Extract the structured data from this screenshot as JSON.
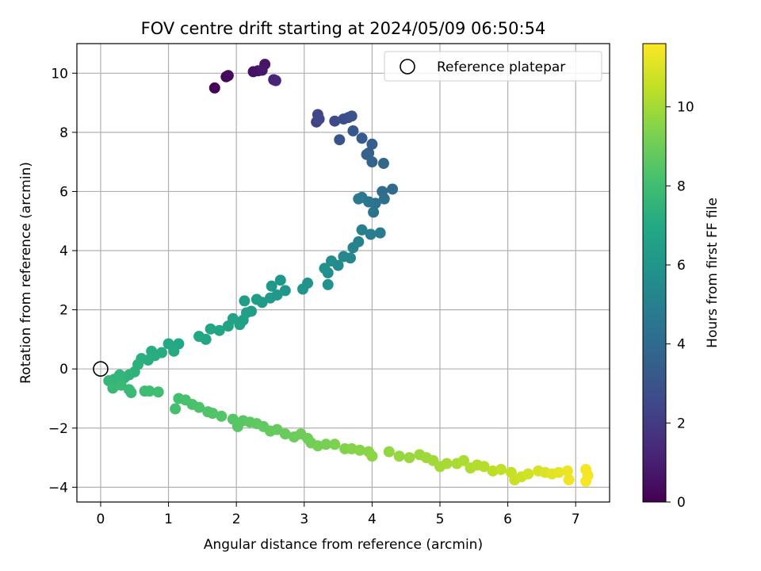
{
  "chart_data": {
    "type": "scatter",
    "title": "FOV centre drift starting at 2024/05/09 06:50:54",
    "xlabel": "Angular distance from reference (arcmin)",
    "ylabel": "Rotation from reference (arcmin)",
    "xlim": [
      -0.35,
      7.5
    ],
    "ylim": [
      -4.5,
      11.0
    ],
    "xticks": [
      0,
      1,
      2,
      3,
      4,
      5,
      6,
      7
    ],
    "yticks": [
      -4,
      -2,
      0,
      2,
      4,
      6,
      8,
      10
    ],
    "grid": true,
    "legend": {
      "position": "top-right",
      "entries": [
        "Reference platepar"
      ]
    },
    "reference_point": {
      "x": 0,
      "y": 0,
      "label": "Reference platepar"
    },
    "colorbar": {
      "label": "Hours from first FF file",
      "colormap": "viridis",
      "range": [
        0,
        11.6
      ],
      "ticks": [
        0,
        2,
        4,
        6,
        8,
        10
      ]
    },
    "series": [
      {
        "values": [
          {
            "x": 1.68,
            "y": 9.5,
            "h": 0.1
          },
          {
            "x": 1.85,
            "y": 9.88,
            "h": 0.2
          },
          {
            "x": 1.88,
            "y": 9.92,
            "h": 0.3
          },
          {
            "x": 2.25,
            "y": 10.05,
            "h": 0.45
          },
          {
            "x": 2.32,
            "y": 10.08,
            "h": 0.55
          },
          {
            "x": 2.42,
            "y": 10.3,
            "h": 0.65
          },
          {
            "x": 2.38,
            "y": 10.1,
            "h": 0.75
          },
          {
            "x": 2.55,
            "y": 9.78,
            "h": 1.1
          },
          {
            "x": 2.58,
            "y": 9.75,
            "h": 1.2
          },
          {
            "x": 3.18,
            "y": 8.35,
            "h": 2.3
          },
          {
            "x": 3.2,
            "y": 8.6,
            "h": 2.4
          },
          {
            "x": 3.22,
            "y": 8.45,
            "h": 2.5
          },
          {
            "x": 3.45,
            "y": 8.38,
            "h": 2.6
          },
          {
            "x": 3.58,
            "y": 8.45,
            "h": 2.7
          },
          {
            "x": 3.65,
            "y": 8.5,
            "h": 2.8
          },
          {
            "x": 3.7,
            "y": 8.55,
            "h": 2.9
          },
          {
            "x": 3.52,
            "y": 7.75,
            "h": 3.0
          },
          {
            "x": 3.72,
            "y": 8.05,
            "h": 3.2
          },
          {
            "x": 3.85,
            "y": 7.8,
            "h": 3.3
          },
          {
            "x": 3.95,
            "y": 7.3,
            "h": 3.4
          },
          {
            "x": 4.0,
            "y": 7.6,
            "h": 3.5
          },
          {
            "x": 3.92,
            "y": 7.25,
            "h": 3.6
          },
          {
            "x": 4.0,
            "y": 7.0,
            "h": 3.7
          },
          {
            "x": 4.17,
            "y": 6.95,
            "h": 3.8
          },
          {
            "x": 4.3,
            "y": 6.08,
            "h": 4.0
          },
          {
            "x": 4.15,
            "y": 6.0,
            "h": 4.1
          },
          {
            "x": 4.18,
            "y": 5.75,
            "h": 4.2
          },
          {
            "x": 4.05,
            "y": 5.6,
            "h": 4.3
          },
          {
            "x": 4.02,
            "y": 5.3,
            "h": 4.4
          },
          {
            "x": 3.95,
            "y": 5.65,
            "h": 4.5
          },
          {
            "x": 3.85,
            "y": 5.8,
            "h": 4.6
          },
          {
            "x": 3.8,
            "y": 5.75,
            "h": 4.7
          },
          {
            "x": 4.12,
            "y": 4.6,
            "h": 4.8
          },
          {
            "x": 3.98,
            "y": 4.55,
            "h": 4.9
          },
          {
            "x": 3.85,
            "y": 4.7,
            "h": 5.0
          },
          {
            "x": 3.8,
            "y": 4.3,
            "h": 5.1
          },
          {
            "x": 3.72,
            "y": 4.1,
            "h": 5.2
          },
          {
            "x": 3.68,
            "y": 3.75,
            "h": 5.3
          },
          {
            "x": 3.58,
            "y": 3.8,
            "h": 5.4
          },
          {
            "x": 3.5,
            "y": 3.5,
            "h": 5.5
          },
          {
            "x": 3.4,
            "y": 3.65,
            "h": 5.6
          },
          {
            "x": 3.35,
            "y": 3.25,
            "h": 5.7
          },
          {
            "x": 3.3,
            "y": 3.4,
            "h": 5.8
          },
          {
            "x": 3.35,
            "y": 2.85,
            "h": 5.85
          },
          {
            "x": 3.05,
            "y": 2.9,
            "h": 5.9
          },
          {
            "x": 2.98,
            "y": 2.7,
            "h": 6.0
          },
          {
            "x": 2.72,
            "y": 2.65,
            "h": 6.05
          },
          {
            "x": 2.65,
            "y": 3.0,
            "h": 6.1
          },
          {
            "x": 2.6,
            "y": 2.5,
            "h": 6.15
          },
          {
            "x": 2.52,
            "y": 2.8,
            "h": 6.2
          },
          {
            "x": 2.5,
            "y": 2.4,
            "h": 6.25
          },
          {
            "x": 2.38,
            "y": 2.25,
            "h": 6.3
          },
          {
            "x": 2.3,
            "y": 2.35,
            "h": 6.35
          },
          {
            "x": 2.22,
            "y": 1.95,
            "h": 6.4
          },
          {
            "x": 2.12,
            "y": 2.3,
            "h": 6.45
          },
          {
            "x": 2.15,
            "y": 1.9,
            "h": 6.5
          },
          {
            "x": 2.1,
            "y": 1.65,
            "h": 6.55
          },
          {
            "x": 2.05,
            "y": 1.5,
            "h": 6.6
          },
          {
            "x": 1.95,
            "y": 1.7,
            "h": 6.65
          },
          {
            "x": 1.88,
            "y": 1.45,
            "h": 6.7
          },
          {
            "x": 1.75,
            "y": 1.3,
            "h": 6.75
          },
          {
            "x": 1.62,
            "y": 1.35,
            "h": 6.8
          },
          {
            "x": 1.55,
            "y": 1.0,
            "h": 6.85
          },
          {
            "x": 1.45,
            "y": 1.1,
            "h": 6.9
          },
          {
            "x": 1.15,
            "y": 0.85,
            "h": 6.95
          },
          {
            "x": 1.0,
            "y": 0.85,
            "h": 7.0
          },
          {
            "x": 1.08,
            "y": 0.6,
            "h": 7.05
          },
          {
            "x": 0.9,
            "y": 0.55,
            "h": 7.1
          },
          {
            "x": 0.8,
            "y": 0.45,
            "h": 7.15
          },
          {
            "x": 0.75,
            "y": 0.6,
            "h": 7.2
          },
          {
            "x": 0.7,
            "y": 0.3,
            "h": 7.25
          },
          {
            "x": 0.6,
            "y": 0.35,
            "h": 7.3
          },
          {
            "x": 0.55,
            "y": 0.15,
            "h": 7.35
          },
          {
            "x": 0.5,
            "y": -0.1,
            "h": 7.4
          },
          {
            "x": 0.42,
            "y": -0.2,
            "h": 7.45
          },
          {
            "x": 0.35,
            "y": -0.3,
            "h": 7.5
          },
          {
            "x": 0.28,
            "y": -0.2,
            "h": 7.55
          },
          {
            "x": 0.2,
            "y": -0.35,
            "h": 7.6
          },
          {
            "x": 0.12,
            "y": -0.4,
            "h": 7.65
          },
          {
            "x": 0.18,
            "y": -0.65,
            "h": 7.7
          },
          {
            "x": 0.3,
            "y": -0.55,
            "h": 7.75
          },
          {
            "x": 0.42,
            "y": -0.7,
            "h": 7.8
          },
          {
            "x": 0.45,
            "y": -0.8,
            "h": 7.85
          },
          {
            "x": 0.65,
            "y": -0.75,
            "h": 7.9
          },
          {
            "x": 0.72,
            "y": -0.75,
            "h": 7.95
          },
          {
            "x": 0.85,
            "y": -0.78,
            "h": 8.0
          },
          {
            "x": 1.15,
            "y": -1.0,
            "h": 8.1
          },
          {
            "x": 1.1,
            "y": -1.35,
            "h": 8.15
          },
          {
            "x": 1.25,
            "y": -1.05,
            "h": 8.2
          },
          {
            "x": 1.35,
            "y": -1.2,
            "h": 8.25
          },
          {
            "x": 1.45,
            "y": -1.3,
            "h": 8.3
          },
          {
            "x": 1.58,
            "y": -1.45,
            "h": 8.35
          },
          {
            "x": 1.65,
            "y": -1.5,
            "h": 8.4
          },
          {
            "x": 1.78,
            "y": -1.6,
            "h": 8.45
          },
          {
            "x": 1.95,
            "y": -1.7,
            "h": 8.5
          },
          {
            "x": 2.02,
            "y": -1.95,
            "h": 8.55
          },
          {
            "x": 2.1,
            "y": -1.75,
            "h": 8.6
          },
          {
            "x": 2.2,
            "y": -1.8,
            "h": 8.65
          },
          {
            "x": 2.3,
            "y": -1.85,
            "h": 8.7
          },
          {
            "x": 2.4,
            "y": -1.95,
            "h": 8.75
          },
          {
            "x": 2.5,
            "y": -2.1,
            "h": 8.8
          },
          {
            "x": 2.6,
            "y": -2.05,
            "h": 8.85
          },
          {
            "x": 2.72,
            "y": -2.2,
            "h": 8.9
          },
          {
            "x": 2.85,
            "y": -2.3,
            "h": 8.95
          },
          {
            "x": 2.95,
            "y": -2.2,
            "h": 9.0
          },
          {
            "x": 3.05,
            "y": -2.35,
            "h": 9.05
          },
          {
            "x": 3.1,
            "y": -2.5,
            "h": 9.1
          },
          {
            "x": 3.2,
            "y": -2.6,
            "h": 9.15
          },
          {
            "x": 3.32,
            "y": -2.55,
            "h": 9.2
          },
          {
            "x": 3.45,
            "y": -2.55,
            "h": 9.3
          },
          {
            "x": 3.6,
            "y": -2.7,
            "h": 9.4
          },
          {
            "x": 3.7,
            "y": -2.7,
            "h": 9.45
          },
          {
            "x": 3.82,
            "y": -2.75,
            "h": 9.5
          },
          {
            "x": 3.95,
            "y": -2.8,
            "h": 9.55
          },
          {
            "x": 4.0,
            "y": -2.95,
            "h": 9.6
          },
          {
            "x": 4.25,
            "y": -2.8,
            "h": 9.7
          },
          {
            "x": 4.4,
            "y": -2.95,
            "h": 9.75
          },
          {
            "x": 4.55,
            "y": -3.0,
            "h": 9.8
          },
          {
            "x": 4.7,
            "y": -2.9,
            "h": 9.85
          },
          {
            "x": 4.8,
            "y": -3.0,
            "h": 9.9
          },
          {
            "x": 4.9,
            "y": -3.1,
            "h": 9.95
          },
          {
            "x": 5.0,
            "y": -3.3,
            "h": 10.0
          },
          {
            "x": 5.1,
            "y": -3.2,
            "h": 10.05
          },
          {
            "x": 5.25,
            "y": -3.2,
            "h": 10.1
          },
          {
            "x": 5.35,
            "y": -3.1,
            "h": 10.15
          },
          {
            "x": 5.45,
            "y": -3.35,
            "h": 10.2
          },
          {
            "x": 5.55,
            "y": -3.25,
            "h": 10.25
          },
          {
            "x": 5.65,
            "y": -3.3,
            "h": 10.3
          },
          {
            "x": 5.78,
            "y": -3.45,
            "h": 10.4
          },
          {
            "x": 5.9,
            "y": -3.4,
            "h": 10.5
          },
          {
            "x": 6.05,
            "y": -3.5,
            "h": 10.6
          },
          {
            "x": 6.1,
            "y": -3.75,
            "h": 10.65
          },
          {
            "x": 6.2,
            "y": -3.65,
            "h": 10.7
          },
          {
            "x": 6.3,
            "y": -3.55,
            "h": 10.8
          },
          {
            "x": 6.45,
            "y": -3.45,
            "h": 10.9
          },
          {
            "x": 6.55,
            "y": -3.5,
            "h": 11.0
          },
          {
            "x": 6.65,
            "y": -3.55,
            "h": 11.1
          },
          {
            "x": 6.75,
            "y": -3.5,
            "h": 11.2
          },
          {
            "x": 6.88,
            "y": -3.45,
            "h": 11.3
          },
          {
            "x": 6.9,
            "y": -3.75,
            "h": 11.35
          },
          {
            "x": 7.15,
            "y": -3.4,
            "h": 11.4
          },
          {
            "x": 7.18,
            "y": -3.6,
            "h": 11.45
          },
          {
            "x": 7.15,
            "y": -3.8,
            "h": 11.5
          }
        ]
      }
    ]
  }
}
